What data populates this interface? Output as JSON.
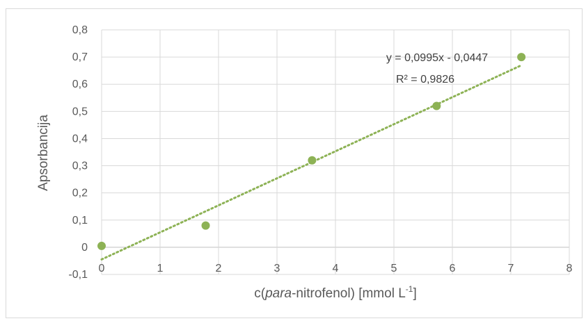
{
  "chart_data": {
    "type": "scatter",
    "xlabel": "c(para-nitrofenol) [mmol L-1]",
    "xlabel_parts": {
      "prefix": "c(",
      "italic": "para",
      "middle": "-nitrofenol) [mmol L",
      "sup": "-1",
      "suffix": "]"
    },
    "ylabel": "Apsorbancija",
    "xlim": [
      0,
      8
    ],
    "ylim": [
      -0.1,
      0.8
    ],
    "x_ticks": [
      0,
      1,
      2,
      3,
      4,
      5,
      6,
      7,
      8
    ],
    "x_tick_labels": [
      "0",
      "1",
      "2",
      "3",
      "4",
      "5",
      "6",
      "7",
      "8"
    ],
    "y_ticks": [
      -0.1,
      0,
      0.1,
      0.2,
      0.3,
      0.4,
      0.5,
      0.6,
      0.7,
      0.8
    ],
    "y_tick_labels": [
      "-0,1",
      "0",
      "0,1",
      "0,2",
      "0,3",
      "0,4",
      "0,5",
      "0,6",
      "0,7",
      "0,8"
    ],
    "grid": true,
    "marker_color": "#8db255",
    "trendline_color": "#8db255",
    "points": [
      {
        "x": 0,
        "y": 0.005
      },
      {
        "x": 1.78,
        "y": 0.08
      },
      {
        "x": 3.6,
        "y": 0.32
      },
      {
        "x": 5.73,
        "y": 0.52
      },
      {
        "x": 7.18,
        "y": 0.7
      }
    ],
    "trendline": {
      "slope": 0.0995,
      "intercept": -0.0447,
      "x_range": [
        0,
        7.18
      ],
      "equation_label": "y = 0,0995x - 0,0447",
      "r2_label": "R² = 0,9826"
    }
  }
}
